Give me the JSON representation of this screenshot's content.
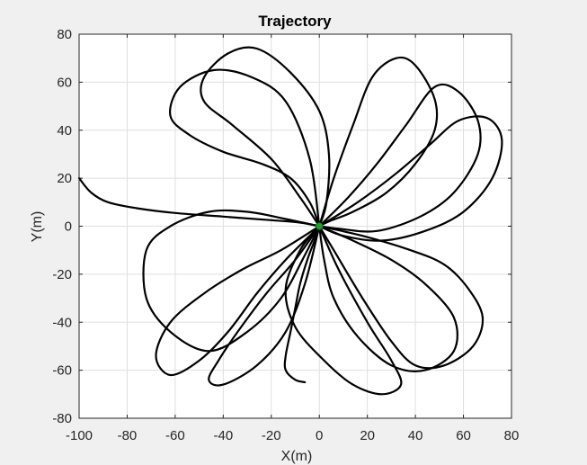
{
  "chart_data": {
    "type": "line",
    "title": "Trajectory",
    "xlabel": "X(m)",
    "ylabel": "Y(m)",
    "xlim": [
      -100,
      80
    ],
    "ylim": [
      -80,
      80
    ],
    "xticks": [
      -100,
      -80,
      -60,
      -40,
      -20,
      0,
      20,
      40,
      60,
      80
    ],
    "yticks": [
      -80,
      -60,
      -40,
      -20,
      0,
      20,
      40,
      60,
      80
    ],
    "xtick_labels": [
      "-100",
      "-80",
      "-60",
      "-40",
      "-20",
      "0",
      "20",
      "40",
      "60",
      "80"
    ],
    "ytick_labels": [
      "-80",
      "-60",
      "-40",
      "-20",
      "0",
      "20",
      "40",
      "60",
      "80"
    ],
    "grid": true,
    "series": [
      {
        "color": "#000000",
        "x": [
          -100,
          -95,
          -88,
          -76,
          -60,
          -40,
          -20,
          -8,
          0
        ],
        "y": [
          20,
          14,
          10,
          7.5,
          5.5,
          4,
          2.5,
          1.5,
          0
        ]
      },
      {
        "color": "#000000",
        "x": [
          0,
          -4,
          -12,
          -24,
          -40,
          -54,
          -62,
          -58,
          -44,
          -28,
          -14,
          -4,
          0
        ],
        "y": [
          0,
          10,
          20,
          26,
          31,
          38,
          46,
          58,
          65,
          62,
          52,
          28,
          0
        ]
      },
      {
        "color": "#000000",
        "x": [
          0,
          3,
          4,
          0,
          -12,
          -26,
          -38,
          -48,
          -48,
          -36,
          -20,
          -8,
          0
        ],
        "y": [
          0,
          10,
          30,
          48,
          64,
          74,
          72,
          62,
          52,
          42,
          28,
          12,
          0
        ]
      },
      {
        "color": "#000000",
        "x": [
          0,
          6,
          14,
          22,
          32,
          40,
          48,
          48,
          40,
          28,
          14,
          4,
          0
        ],
        "y": [
          0,
          20,
          42,
          62,
          70,
          67,
          53,
          40,
          26,
          14,
          6,
          2,
          0
        ]
      },
      {
        "color": "#000000",
        "x": [
          0,
          12,
          24,
          36,
          48,
          58,
          66,
          66,
          56,
          42,
          24,
          8,
          0
        ],
        "y": [
          0,
          12,
          26,
          42,
          58,
          56,
          44,
          30,
          14,
          4,
          -2,
          -1,
          0
        ]
      },
      {
        "color": "#000000",
        "x": [
          0,
          16,
          32,
          46,
          58,
          70,
          76,
          72,
          60,
          44,
          26,
          10,
          0
        ],
        "y": [
          0,
          10,
          22,
          34,
          44,
          45,
          36,
          20,
          6,
          -2,
          -6,
          -4,
          0
        ]
      },
      {
        "color": "#000000",
        "x": [
          0,
          18,
          38,
          52,
          62,
          68,
          64,
          52,
          40,
          30,
          18,
          6,
          0
        ],
        "y": [
          0,
          -4,
          -10,
          -16,
          -26,
          -38,
          -50,
          -58,
          -58,
          -48,
          -30,
          -10,
          0
        ]
      },
      {
        "color": "#000000",
        "x": [
          0,
          14,
          30,
          44,
          56,
          56,
          44,
          30,
          16,
          6,
          2,
          0
        ],
        "y": [
          0,
          -6,
          -14,
          -24,
          -38,
          -52,
          -60,
          -58,
          -46,
          -30,
          -14,
          0
        ]
      },
      {
        "color": "#000000",
        "x": [
          0,
          -8,
          -14,
          -10,
          2,
          14,
          26,
          34,
          30,
          20,
          8,
          0
        ],
        "y": [
          0,
          -10,
          -26,
          -42,
          -56,
          -66,
          -70,
          -66,
          -56,
          -40,
          -18,
          0
        ]
      },
      {
        "color": "#000000",
        "x": [
          0,
          -10,
          -22,
          -34,
          -42,
          -46,
          -40,
          -26,
          -14,
          -6,
          0
        ],
        "y": [
          0,
          -14,
          -28,
          -44,
          -56,
          -64,
          -66,
          -58,
          -44,
          -24,
          0
        ]
      },
      {
        "color": "#000000",
        "x": [
          0,
          -16,
          -32,
          -48,
          -62,
          -68,
          -62,
          -50,
          -38,
          -26,
          -14,
          -4,
          0
        ],
        "y": [
          0,
          -10,
          -18,
          -28,
          -40,
          -54,
          -62,
          -56,
          -44,
          -28,
          -14,
          -4,
          0
        ]
      },
      {
        "color": "#000000",
        "x": [
          0,
          -14,
          -30,
          -46,
          -62,
          -72,
          -72,
          -62,
          -46,
          -30,
          -16,
          -6,
          0
        ],
        "y": [
          0,
          3,
          6,
          6,
          0,
          -10,
          -30,
          -44,
          -52,
          -44,
          -30,
          -12,
          0
        ]
      },
      {
        "color": "#000000",
        "x": [
          0,
          -2,
          -5,
          -8,
          -10,
          -12,
          -14,
          -14,
          -10,
          -6
        ],
        "y": [
          0,
          -6,
          -14,
          -24,
          -34,
          -44,
          -54,
          -60,
          -64,
          -65
        ]
      }
    ],
    "marker": {
      "x": 0,
      "y": 0,
      "color": "#1e9e2e"
    }
  }
}
